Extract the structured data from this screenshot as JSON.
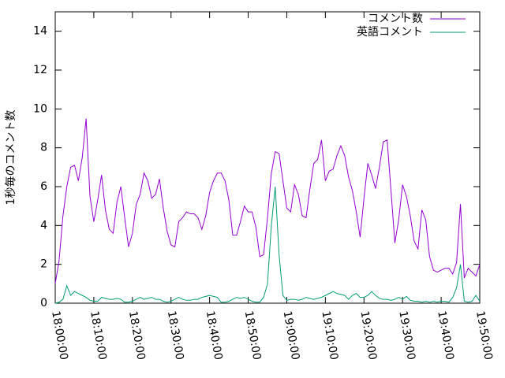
{
  "chart_data": {
    "type": "line",
    "ylabel": "1秒毎のコメント数",
    "x": [
      "18:00:00",
      "18:01:00",
      "18:02:00",
      "18:03:00",
      "18:04:00",
      "18:05:00",
      "18:06:00",
      "18:07:00",
      "18:08:00",
      "18:09:00",
      "18:10:00",
      "18:11:00",
      "18:12:00",
      "18:13:00",
      "18:14:00",
      "18:15:00",
      "18:16:00",
      "18:17:00",
      "18:18:00",
      "18:19:00",
      "18:20:00",
      "18:21:00",
      "18:22:00",
      "18:23:00",
      "18:24:00",
      "18:25:00",
      "18:26:00",
      "18:27:00",
      "18:28:00",
      "18:29:00",
      "18:30:00",
      "18:31:00",
      "18:32:00",
      "18:33:00",
      "18:34:00",
      "18:35:00",
      "18:36:00",
      "18:37:00",
      "18:38:00",
      "18:39:00",
      "18:40:00",
      "18:41:00",
      "18:42:00",
      "18:43:00",
      "18:44:00",
      "18:45:00",
      "18:46:00",
      "18:47:00",
      "18:48:00",
      "18:49:00",
      "18:50:00",
      "18:51:00",
      "18:52:00",
      "18:53:00",
      "18:54:00",
      "18:55:00",
      "18:56:00",
      "18:57:00",
      "18:58:00",
      "18:59:00",
      "19:00:00",
      "19:01:00",
      "19:02:00",
      "19:03:00",
      "19:04:00",
      "19:05:00",
      "19:06:00",
      "19:07:00",
      "19:08:00",
      "19:09:00",
      "19:10:00",
      "19:11:00",
      "19:12:00",
      "19:13:00",
      "19:14:00",
      "19:15:00",
      "19:16:00",
      "19:17:00",
      "19:18:00",
      "19:19:00",
      "19:20:00",
      "19:21:00",
      "19:22:00",
      "19:23:00",
      "19:24:00",
      "19:25:00",
      "19:26:00",
      "19:27:00",
      "19:28:00",
      "19:29:00",
      "19:30:00",
      "19:31:00",
      "19:32:00",
      "19:33:00",
      "19:34:00",
      "19:35:00",
      "19:36:00",
      "19:37:00",
      "19:38:00",
      "19:39:00",
      "19:40:00",
      "19:41:00",
      "19:42:00",
      "19:43:00",
      "19:44:00",
      "19:45:00",
      "19:46:00",
      "19:47:00",
      "19:48:00",
      "19:49:00",
      "19:50:00"
    ],
    "series": [
      {
        "name": "コメント数",
        "color": "#9400d3",
        "values": [
          1.0,
          2.2,
          4.5,
          6.0,
          7.0,
          7.1,
          6.3,
          7.5,
          9.5,
          5.5,
          4.2,
          5.3,
          6.6,
          4.8,
          3.8,
          3.6,
          5.2,
          6.0,
          4.4,
          2.9,
          3.6,
          5.1,
          5.6,
          6.7,
          6.3,
          5.4,
          5.6,
          6.4,
          4.9,
          3.7,
          3.0,
          2.9,
          4.2,
          4.4,
          4.7,
          4.6,
          4.6,
          4.4,
          3.8,
          4.5,
          5.7,
          6.3,
          6.7,
          6.7,
          6.3,
          5.3,
          3.5,
          3.5,
          4.2,
          5.0,
          4.7,
          4.7,
          3.9,
          2.4,
          2.5,
          4.4,
          6.7,
          7.8,
          7.7,
          6.3,
          4.9,
          4.7,
          6.1,
          5.6,
          4.5,
          4.4,
          5.9,
          7.2,
          7.4,
          8.4,
          6.3,
          6.8,
          6.9,
          7.6,
          8.1,
          7.6,
          6.5,
          5.8,
          4.7,
          3.4,
          5.4,
          7.2,
          6.6,
          5.9,
          7.0,
          8.3,
          8.4,
          5.8,
          3.1,
          4.3,
          6.1,
          5.5,
          4.5,
          3.2,
          2.8,
          4.8,
          4.3,
          2.4,
          1.7,
          1.6,
          1.7,
          1.8,
          1.8,
          1.5,
          2.1,
          5.1,
          1.3,
          1.8,
          1.6,
          1.4,
          2.0
        ]
      },
      {
        "name": "英語コメント",
        "color": "#009e73",
        "values": [
          0,
          0.05,
          0.2,
          0.9,
          0.4,
          0.6,
          0.5,
          0.4,
          0.3,
          0.15,
          0.1,
          0.1,
          0.3,
          0.25,
          0.2,
          0.2,
          0.25,
          0.2,
          0.05,
          0.05,
          0.1,
          0.2,
          0.3,
          0.2,
          0.25,
          0.3,
          0.2,
          0.2,
          0.1,
          0.05,
          0.1,
          0.2,
          0.3,
          0.2,
          0.15,
          0.15,
          0.2,
          0.2,
          0.3,
          0.35,
          0.4,
          0.35,
          0.3,
          0.05,
          0.05,
          0.1,
          0.2,
          0.3,
          0.25,
          0.3,
          0.2,
          0.1,
          0.05,
          0.05,
          0.3,
          1.0,
          4.0,
          6.0,
          2.5,
          0.4,
          0.15,
          0.2,
          0.2,
          0.15,
          0.2,
          0.3,
          0.25,
          0.2,
          0.25,
          0.3,
          0.4,
          0.5,
          0.6,
          0.5,
          0.45,
          0.4,
          0.2,
          0.4,
          0.5,
          0.3,
          0.3,
          0.4,
          0.6,
          0.4,
          0.25,
          0.2,
          0.2,
          0.15,
          0.2,
          0.3,
          0.2,
          0.35,
          0.15,
          0.1,
          0.1,
          0.05,
          0.1,
          0.05,
          0.1,
          0.05,
          0.1,
          0.1,
          0.05,
          0.3,
          0.8,
          2.0,
          0.1,
          0.05,
          0.1,
          0.4,
          0.1
        ]
      }
    ],
    "xlim": [
      "18:00:00",
      "19:50:00"
    ],
    "xticks": [
      "18:00:00",
      "18:10:00",
      "18:20:00",
      "18:30:00",
      "18:40:00",
      "18:50:00",
      "19:00:00",
      "19:10:00",
      "19:20:00",
      "19:30:00",
      "19:40:00",
      "19:50:00"
    ],
    "ylim": [
      0,
      15
    ],
    "yticks": [
      0,
      2,
      4,
      6,
      8,
      10,
      12,
      14
    ],
    "legend": "top-right"
  }
}
